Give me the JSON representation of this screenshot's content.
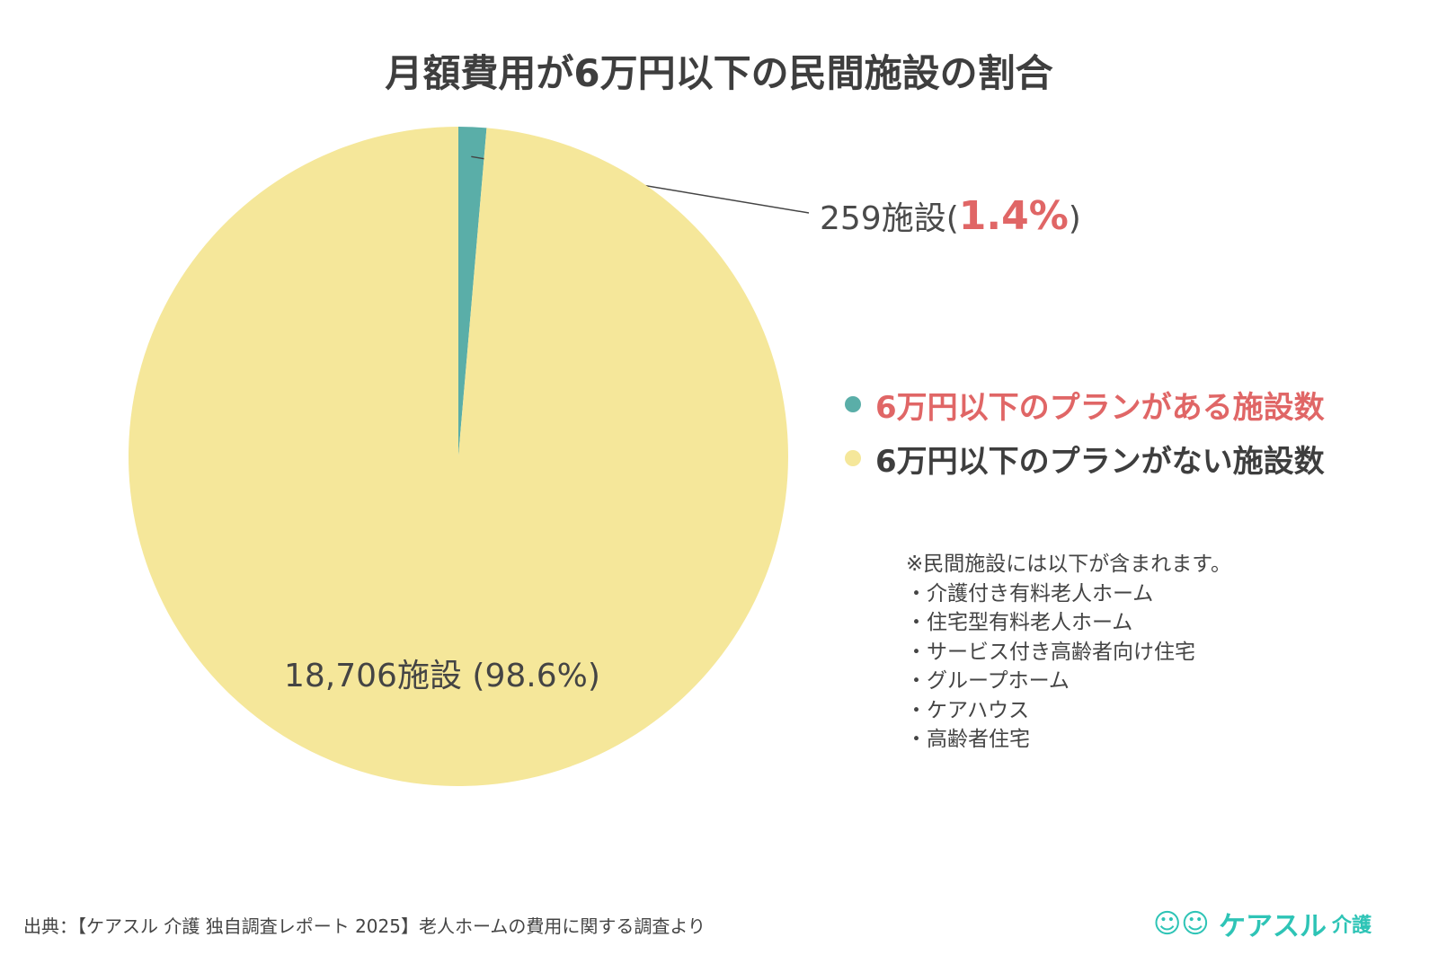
{
  "chart_data": {
    "type": "pie",
    "title": "月額費用が6万円以下の民間施設の割合",
    "slices": [
      {
        "name": "6万円以下のプランがある施設数",
        "value": 259,
        "percent": 1.4,
        "label_count": "259施設",
        "label_pct": "1.4%",
        "color": "#5aaea8"
      },
      {
        "name": "6万円以下のプランがない施設数",
        "value": 18706,
        "percent": 98.6,
        "label": "18,706施設 (98.6%)",
        "color": "#f5e79a"
      }
    ],
    "legend_position": "right"
  },
  "legend_colors": {
    "first": "#e06666",
    "second": "#3e3e3e"
  },
  "note": {
    "heading": "※民間施設には以下が含まれます。",
    "items": [
      "・介護付き有料老人ホーム",
      "・住宅型有料老人ホーム",
      "・サービス付き高齢者向け住宅",
      "・グループホーム",
      "・ケアハウス",
      "・高齢者住宅"
    ]
  },
  "source": "出典：【ケアスル 介護 独自調査レポート 2025】老人ホームの費用に関する調査より",
  "logo": {
    "text": "ケアスル",
    "sub": "介護"
  }
}
